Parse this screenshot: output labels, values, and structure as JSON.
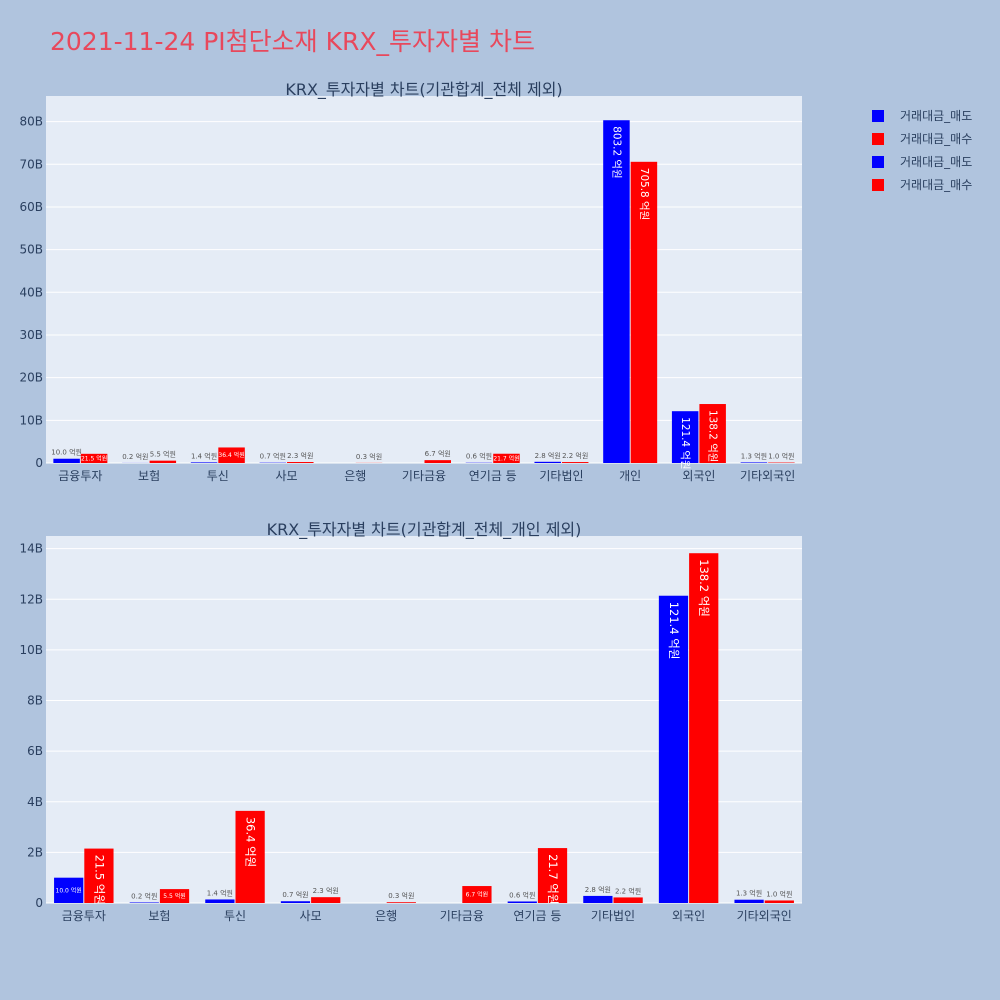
{
  "page": {
    "title": "2021-11-24 PI첨단소재 KRX_투자자별 차트",
    "colors": {
      "background": "#b0c4de",
      "plot_bg": "#e5ecf6",
      "title": "#e8485c",
      "sell": "#0000ff",
      "buy": "#ff0000"
    }
  },
  "legend": {
    "items": [
      {
        "label": "거래대금_매도",
        "color": "#0000ff"
      },
      {
        "label": "거래대금_매수",
        "color": "#ff0000"
      },
      {
        "label": "거래대금_매도",
        "color": "#0000ff"
      },
      {
        "label": "거래대금_매수",
        "color": "#ff0000"
      }
    ]
  },
  "chart_data": [
    {
      "type": "bar",
      "title": "KRX_투자자별 차트(기관합계_전체 제외)",
      "categories": [
        "금융투자",
        "보험",
        "투신",
        "사모",
        "은행",
        "기타금융",
        "연기금 등",
        "기타법인",
        "개인",
        "외국인",
        "기타외국인"
      ],
      "series": [
        {
          "name": "거래대금_매도",
          "color": "#0000ff",
          "values": [
            1.0,
            0.02,
            0.14,
            0.07,
            0.0,
            0.0,
            0.06,
            0.28,
            80.32,
            12.14,
            0.13
          ],
          "labels": [
            "10.0 억원",
            "0.2 억원",
            "1.4 억원",
            "0.7 억원",
            "",
            "",
            "0.6 억원",
            "2.8 억원",
            "803.2 억원",
            "121.4 억원",
            "1.3 억원"
          ]
        },
        {
          "name": "거래대금_매수",
          "color": "#ff0000",
          "values": [
            2.15,
            0.55,
            3.64,
            0.23,
            0.03,
            0.67,
            2.17,
            0.22,
            70.58,
            13.82,
            0.1
          ],
          "labels": [
            "21.5 억원",
            "5.5 억원",
            "36.4 억원",
            "2.3 억원",
            "0.3 억원",
            "6.7 억원",
            "21.7 억원",
            "2.2 억원",
            "705.8 억원",
            "138.2 억원",
            "1.0 억원"
          ]
        }
      ],
      "ylim": [
        0,
        86
      ],
      "yticks": [
        0,
        10,
        20,
        30,
        40,
        50,
        60,
        70,
        80
      ],
      "ytick_labels": [
        "0",
        "10B",
        "20B",
        "30B",
        "40B",
        "50B",
        "60B",
        "70B",
        "80B"
      ]
    },
    {
      "type": "bar",
      "title": "KRX_투자자별 차트(기관합계_전체_개인 제외)",
      "categories": [
        "금융투자",
        "보험",
        "투신",
        "사모",
        "은행",
        "기타금융",
        "연기금 등",
        "기타법인",
        "외국인",
        "기타외국인"
      ],
      "series": [
        {
          "name": "거래대금_매도",
          "color": "#0000ff",
          "values": [
            1.0,
            0.02,
            0.14,
            0.07,
            0.0,
            0.0,
            0.06,
            0.28,
            12.14,
            0.13
          ],
          "labels": [
            "10.0 억원",
            "0.2 억원",
            "1.4 억원",
            "0.7 억원",
            "",
            "",
            "0.6 억원",
            "2.8 억원",
            "121.4 억원",
            "1.3 억원"
          ]
        },
        {
          "name": "거래대금_매수",
          "color": "#ff0000",
          "values": [
            2.15,
            0.55,
            3.64,
            0.23,
            0.03,
            0.67,
            2.17,
            0.22,
            13.82,
            0.1
          ],
          "labels": [
            "21.5 억원",
            "5.5 억원",
            "36.4 억원",
            "2.3 억원",
            "0.3 억원",
            "6.7 억원",
            "21.7 억원",
            "2.2 억원",
            "138.2 억원",
            "1.0 억원"
          ]
        }
      ],
      "ylim": [
        0,
        14.5
      ],
      "yticks": [
        0,
        2,
        4,
        6,
        8,
        10,
        12,
        14
      ],
      "ytick_labels": [
        "0",
        "2B",
        "4B",
        "6B",
        "8B",
        "10B",
        "12B",
        "14B"
      ]
    }
  ]
}
